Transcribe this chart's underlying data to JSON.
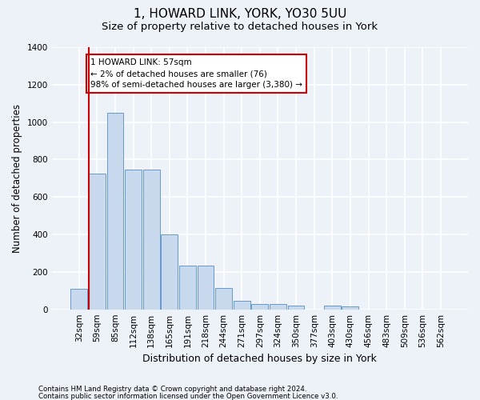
{
  "title1": "1, HOWARD LINK, YORK, YO30 5UU",
  "title2": "Size of property relative to detached houses in York",
  "xlabel": "Distribution of detached houses by size in York",
  "ylabel": "Number of detached properties",
  "categories": [
    "32sqm",
    "59sqm",
    "85sqm",
    "112sqm",
    "138sqm",
    "165sqm",
    "191sqm",
    "218sqm",
    "244sqm",
    "271sqm",
    "297sqm",
    "324sqm",
    "350sqm",
    "377sqm",
    "403sqm",
    "430sqm",
    "456sqm",
    "483sqm",
    "509sqm",
    "536sqm",
    "562sqm"
  ],
  "values": [
    110,
    725,
    1050,
    748,
    748,
    400,
    235,
    235,
    115,
    45,
    30,
    30,
    20,
    0,
    20,
    15,
    0,
    0,
    0,
    0,
    0
  ],
  "bar_color": "#c8d9ee",
  "bar_edge_color": "#6699cc",
  "vline_x": 0.55,
  "vline_color": "#cc0000",
  "annotation_text": "1 HOWARD LINK: 57sqm\n← 2% of detached houses are smaller (76)\n98% of semi-detached houses are larger (3,380) →",
  "annotation_box_color": "#ffffff",
  "annotation_box_edge": "#cc0000",
  "ylim": [
    0,
    1400
  ],
  "yticks": [
    0,
    200,
    400,
    600,
    800,
    1000,
    1200,
    1400
  ],
  "footer1": "Contains HM Land Registry data © Crown copyright and database right 2024.",
  "footer2": "Contains public sector information licensed under the Open Government Licence v3.0.",
  "bg_color": "#edf1f8",
  "grid_color": "#ffffff",
  "title1_fontsize": 11,
  "title2_fontsize": 9.5,
  "annot_fontsize": 7.5
}
